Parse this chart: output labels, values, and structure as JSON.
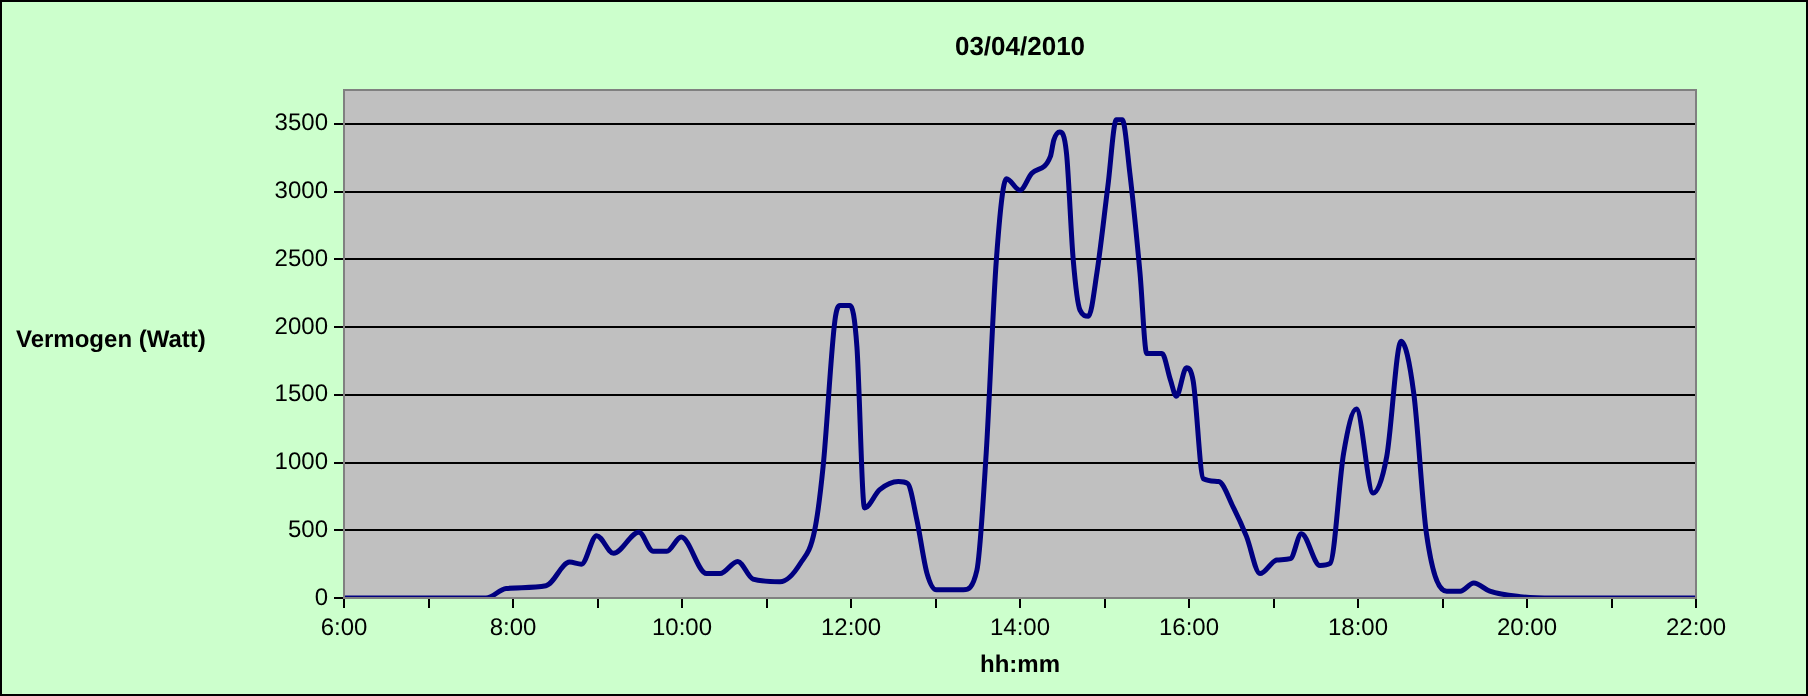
{
  "chart_data": {
    "type": "line",
    "title": "03/04/2010",
    "xlabel": "hh:mm",
    "ylabel": "Vermogen (Watt)",
    "xlim": [
      6,
      22
    ],
    "ylim": [
      0,
      3750
    ],
    "xticks": [
      {
        "value": 6,
        "label": "6:00"
      },
      {
        "value": 7,
        "label": null
      },
      {
        "value": 8,
        "label": "8:00"
      },
      {
        "value": 9,
        "label": null
      },
      {
        "value": 10,
        "label": "10:00"
      },
      {
        "value": 11,
        "label": null
      },
      {
        "value": 12,
        "label": "12:00"
      },
      {
        "value": 13,
        "label": null
      },
      {
        "value": 14,
        "label": "14:00"
      },
      {
        "value": 15,
        "label": null
      },
      {
        "value": 16,
        "label": "16:00"
      },
      {
        "value": 17,
        "label": null
      },
      {
        "value": 18,
        "label": "18:00"
      },
      {
        "value": 19,
        "label": null
      },
      {
        "value": 20,
        "label": "20:00"
      },
      {
        "value": 21,
        "label": null
      },
      {
        "value": 22,
        "label": "22:00"
      }
    ],
    "yticks": [
      0,
      500,
      1000,
      1500,
      2000,
      2500,
      3000,
      3500
    ],
    "grid": "y",
    "legend": false,
    "marker": "none",
    "line_style": "solid",
    "series": [
      {
        "color": "#000080",
        "x": [
          6.0,
          7.68,
          7.92,
          8.39,
          8.67,
          8.81,
          8.99,
          9.19,
          9.49,
          9.66,
          9.82,
          9.99,
          10.29,
          10.45,
          10.66,
          10.84,
          11.16,
          11.4,
          11.57,
          11.67,
          11.81,
          11.87,
          11.99,
          12.07,
          12.16,
          12.34,
          12.56,
          12.67,
          12.78,
          12.9,
          13.01,
          13.33,
          13.49,
          13.6,
          13.72,
          13.84,
          14.0,
          14.14,
          14.36,
          14.4,
          14.47,
          14.55,
          14.63,
          14.71,
          14.81,
          14.91,
          15.04,
          15.14,
          15.21,
          15.3,
          15.42,
          15.5,
          15.68,
          15.78,
          15.85,
          15.97,
          16.05,
          16.17,
          16.35,
          16.52,
          16.68,
          16.84,
          17.04,
          17.2,
          17.33,
          17.55,
          17.67,
          17.83,
          17.98,
          18.18,
          18.34,
          18.51,
          18.66,
          18.81,
          19.05,
          19.21,
          19.37,
          19.56,
          19.92,
          20.3,
          22.0
        ],
        "values": [
          0,
          0,
          70,
          90,
          265,
          250,
          460,
          330,
          485,
          345,
          345,
          450,
          180,
          180,
          270,
          140,
          120,
          255,
          500,
          970,
          2050,
          2160,
          2160,
          1855,
          665,
          800,
          860,
          845,
          575,
          180,
          60,
          60,
          205,
          1070,
          2495,
          3095,
          3010,
          3135,
          3260,
          3380,
          3440,
          3285,
          2495,
          2125,
          2080,
          2400,
          3040,
          3530,
          3530,
          3135,
          2400,
          1805,
          1805,
          1610,
          1490,
          1700,
          1600,
          880,
          860,
          675,
          455,
          180,
          280,
          290,
          475,
          240,
          255,
          1070,
          1395,
          775,
          1045,
          1895,
          1510,
          475,
          50,
          50,
          110,
          50,
          10,
          0,
          0
        ]
      }
    ]
  }
}
